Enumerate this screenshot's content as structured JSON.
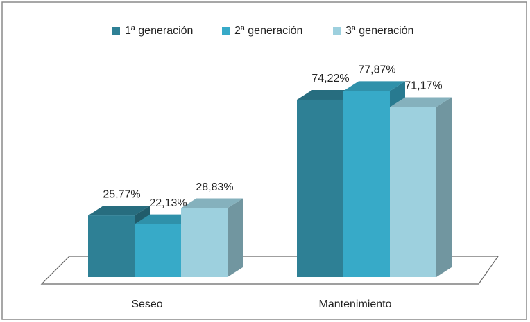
{
  "chart_data": {
    "type": "bar3d",
    "categories": [
      "Seseo",
      "Mantenimiento"
    ],
    "series": [
      {
        "name": "1ª generación",
        "color": "#2e8095",
        "values": [
          25.77,
          74.22
        ],
        "value_labels": [
          "25,77%",
          "74,22%"
        ]
      },
      {
        "name": "2ª generación",
        "color": "#37aac8",
        "values": [
          22.13,
          77.87
        ],
        "value_labels": [
          "22,13%",
          "77,87%"
        ]
      },
      {
        "name": "3ª generación",
        "color": "#9dd0de",
        "values": [
          28.83,
          71.17
        ],
        "value_labels": [
          "28,83%",
          "71,17%"
        ]
      }
    ],
    "legend": "top"
  }
}
